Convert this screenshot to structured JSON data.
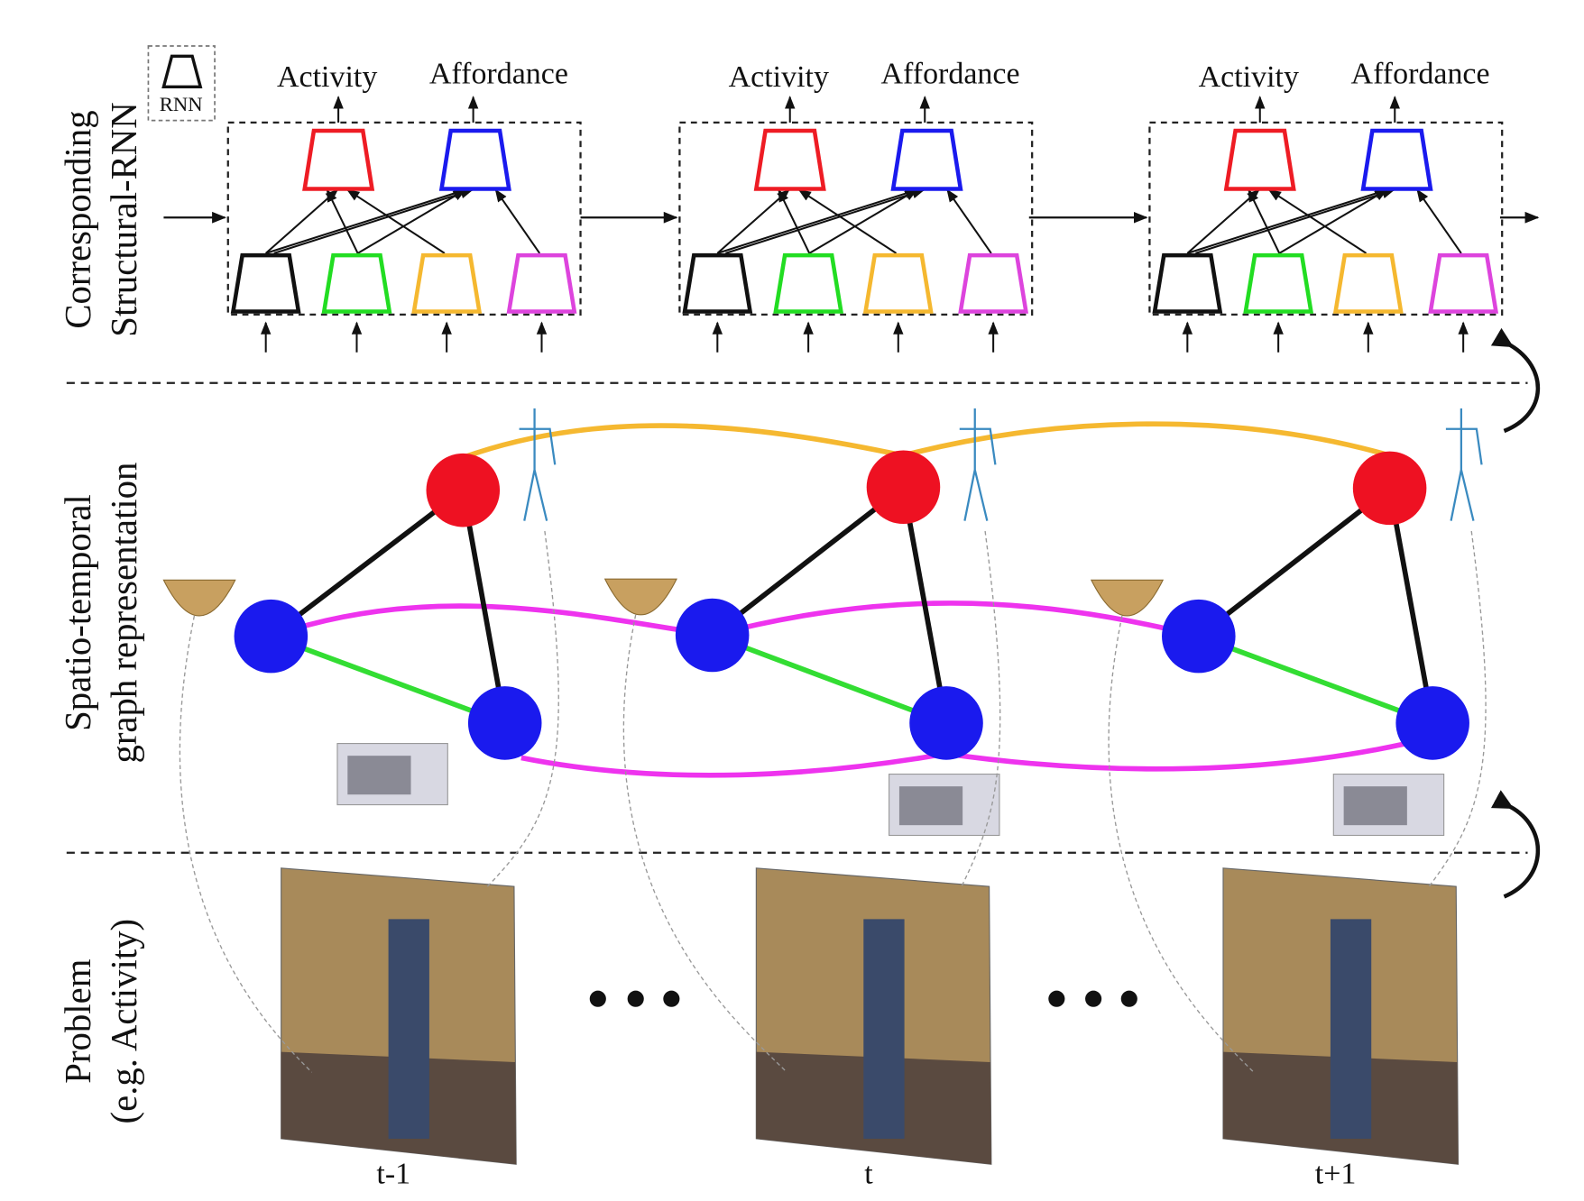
{
  "row_labels": [
    {
      "lines": [
        "Corresponding",
        "Structural-RNN"
      ]
    },
    {
      "lines": [
        "Spatio-temporal",
        "graph representation"
      ]
    },
    {
      "lines": [
        "Problem",
        "(e.g. Activity)"
      ]
    }
  ],
  "legend": {
    "label": "RNN"
  },
  "frames": [
    {
      "activity": "Activity",
      "affordance": "Affordance",
      "time": "t-1"
    },
    {
      "activity": "Activity",
      "affordance": "Affordance",
      "time": "t"
    },
    {
      "activity": "Activity",
      "affordance": "Affordance",
      "time": "t+1"
    }
  ]
}
